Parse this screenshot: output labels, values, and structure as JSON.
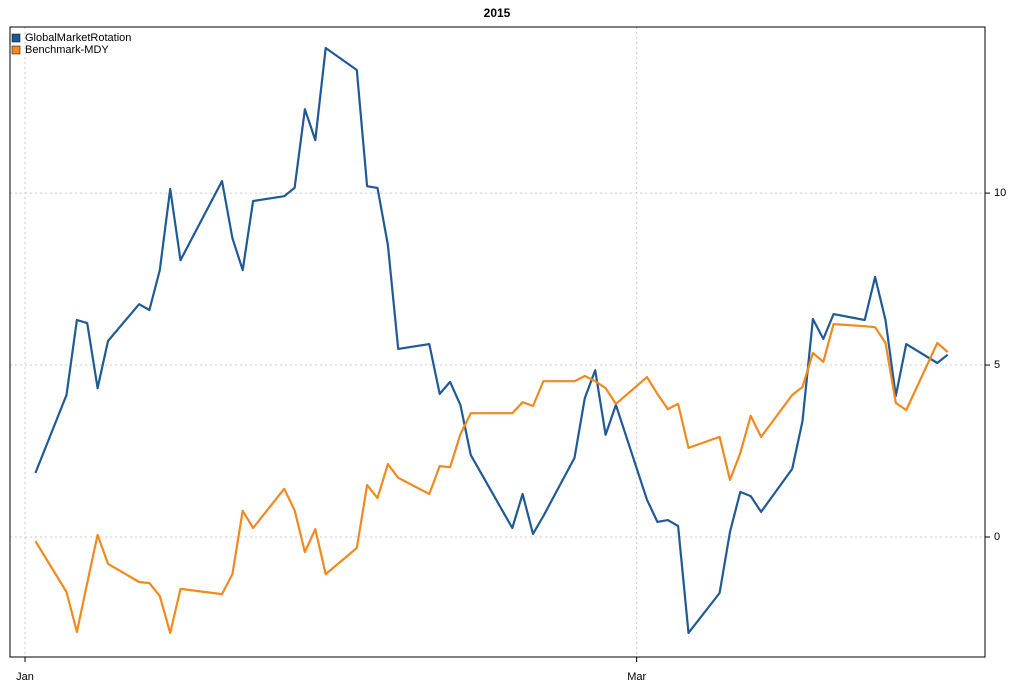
{
  "chart_data": {
    "type": "line",
    "title": "2015",
    "x": [
      1,
      4,
      5,
      6,
      7,
      8,
      11,
      12,
      13,
      14,
      15,
      19,
      20,
      21,
      22,
      25,
      26,
      27,
      28,
      29,
      32,
      33,
      34,
      35,
      36,
      39,
      40,
      41,
      42,
      43,
      47,
      48,
      49,
      50,
      53,
      54,
      55,
      56,
      57,
      60,
      61,
      62,
      63,
      64,
      67,
      68,
      69,
      70,
      71,
      74,
      75,
      76,
      77,
      78,
      81,
      82,
      83,
      84,
      85,
      88,
      89
    ],
    "series": [
      {
        "name": "GlobalMarketRotation",
        "color": "#1f5a96",
        "values": [
          1.86,
          4.13,
          6.31,
          6.22,
          4.33,
          5.7,
          6.77,
          6.6,
          7.76,
          10.12,
          8.05,
          10.35,
          8.69,
          7.76,
          9.77,
          9.91,
          10.15,
          12.44,
          11.54,
          14.22,
          13.58,
          10.2,
          10.15,
          8.49,
          5.47,
          5.61,
          4.16,
          4.51,
          3.84,
          2.38,
          0.26,
          1.25,
          0.09,
          0.61,
          2.3,
          4.04,
          4.85,
          2.97,
          3.84,
          1.08,
          0.44,
          0.49,
          0.32,
          -2.79,
          -1.63,
          0.15,
          1.31,
          1.19,
          0.73,
          1.98,
          3.37,
          6.34,
          5.76,
          6.48,
          6.31,
          7.56,
          6.31,
          4.1,
          5.61,
          5.06,
          5.3
        ]
      },
      {
        "name": "Benchmark-MDY",
        "color": "#f0891e",
        "values": [
          -0.12,
          -1.6,
          -2.76,
          -1.34,
          0.06,
          -0.78,
          -1.31,
          -1.34,
          -1.72,
          -2.79,
          -1.51,
          -1.66,
          -1.08,
          0.76,
          0.26,
          1.4,
          0.78,
          -0.44,
          0.23,
          -1.08,
          -0.32,
          1.51,
          1.13,
          2.12,
          1.72,
          1.25,
          2.06,
          2.03,
          2.99,
          3.6,
          3.6,
          3.92,
          3.81,
          4.53,
          4.53,
          4.68,
          4.53,
          4.33,
          3.87,
          4.65,
          4.16,
          3.72,
          3.87,
          2.59,
          2.91,
          1.66,
          2.44,
          3.52,
          2.91,
          4.13,
          4.36,
          5.35,
          5.09,
          6.19,
          6.13,
          6.1,
          5.64,
          3.9,
          3.69,
          5.64,
          5.38
        ]
      }
    ],
    "xlim": [
      -1.45,
      92.6
    ],
    "xticks": [
      {
        "value": 0,
        "label": "Jan"
      },
      {
        "value": 59,
        "label": "Mar"
      }
    ],
    "ylim": [
      -3.49,
      14.83
    ],
    "yticks": [
      0,
      5,
      10
    ],
    "grid": true,
    "legend": "top-left"
  }
}
